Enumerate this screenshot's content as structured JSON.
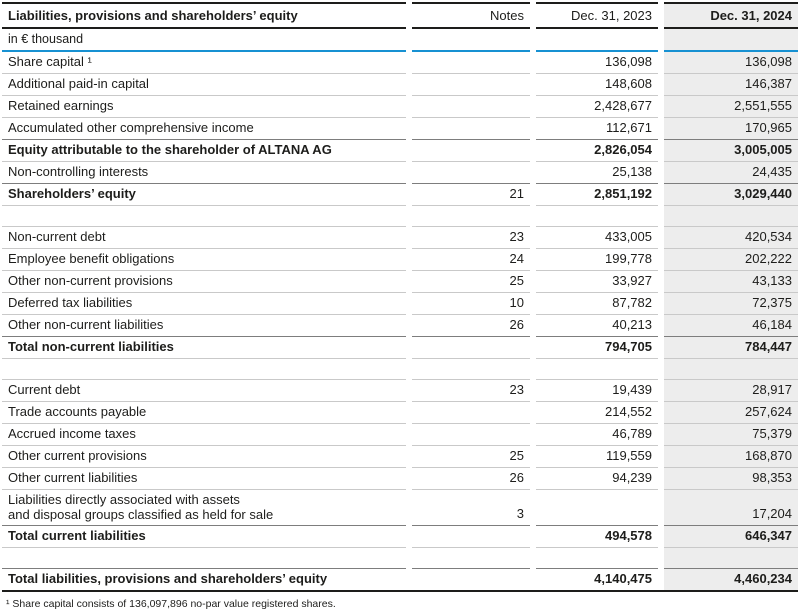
{
  "table": {
    "header": {
      "label": "Liabilities, provisions and shareholders’ equity",
      "notes": "Notes",
      "y2023": "Dec. 31, 2023",
      "y2024": "Dec. 31, 2024"
    },
    "unit_label": "in € thousand",
    "rows": [
      {
        "label": "Share capital ¹",
        "notes": "",
        "v2023": "136,098",
        "v2024": "136,098",
        "bold": false,
        "sep": "blue",
        "spacer": false,
        "twoline": false
      },
      {
        "label": "Additional paid-in capital",
        "notes": "",
        "v2023": "148,608",
        "v2024": "146,387",
        "bold": false,
        "sep": "light",
        "spacer": false,
        "twoline": false
      },
      {
        "label": "Retained earnings",
        "notes": "",
        "v2023": "2,428,677",
        "v2024": "2,551,555",
        "bold": false,
        "sep": "light",
        "spacer": false,
        "twoline": false
      },
      {
        "label": "Accumulated other comprehensive income",
        "notes": "",
        "v2023": "112,671",
        "v2024": "170,965",
        "bold": false,
        "sep": "light",
        "spacer": false,
        "twoline": false
      },
      {
        "label": "Equity attributable to the shareholder of ALTANA AG",
        "notes": "",
        "v2023": "2,826,054",
        "v2024": "3,005,005",
        "bold": true,
        "sep": "dark",
        "spacer": false,
        "twoline": false
      },
      {
        "label": "Non-controlling interests",
        "notes": "",
        "v2023": "25,138",
        "v2024": "24,435",
        "bold": false,
        "sep": "light",
        "spacer": false,
        "twoline": false
      },
      {
        "label": "Shareholders’ equity",
        "notes": "21",
        "v2023": "2,851,192",
        "v2024": "3,029,440",
        "bold": true,
        "sep": "dark",
        "spacer": false,
        "twoline": false
      },
      {
        "label": "",
        "notes": "",
        "v2023": "",
        "v2024": "",
        "bold": false,
        "sep": "light",
        "spacer": true,
        "twoline": false
      },
      {
        "label": "Non-current debt",
        "notes": "23",
        "v2023": "433,005",
        "v2024": "420,534",
        "bold": false,
        "sep": "light",
        "spacer": false,
        "twoline": false
      },
      {
        "label": "Employee benefit obligations",
        "notes": "24",
        "v2023": "199,778",
        "v2024": "202,222",
        "bold": false,
        "sep": "light",
        "spacer": false,
        "twoline": false
      },
      {
        "label": "Other non-current provisions",
        "notes": "25",
        "v2023": "33,927",
        "v2024": "43,133",
        "bold": false,
        "sep": "light",
        "spacer": false,
        "twoline": false
      },
      {
        "label": "Deferred tax liabilities",
        "notes": "10",
        "v2023": "87,782",
        "v2024": "72,375",
        "bold": false,
        "sep": "light",
        "spacer": false,
        "twoline": false
      },
      {
        "label": "Other non-current liabilities",
        "notes": "26",
        "v2023": "40,213",
        "v2024": "46,184",
        "bold": false,
        "sep": "light",
        "spacer": false,
        "twoline": false
      },
      {
        "label": "Total non-current liabilities",
        "notes": "",
        "v2023": "794,705",
        "v2024": "784,447",
        "bold": true,
        "sep": "dark",
        "spacer": false,
        "twoline": false
      },
      {
        "label": "",
        "notes": "",
        "v2023": "",
        "v2024": "",
        "bold": false,
        "sep": "light",
        "spacer": true,
        "twoline": false
      },
      {
        "label": "Current debt",
        "notes": "23",
        "v2023": "19,439",
        "v2024": "28,917",
        "bold": false,
        "sep": "light",
        "spacer": false,
        "twoline": false
      },
      {
        "label": "Trade accounts payable",
        "notes": "",
        "v2023": "214,552",
        "v2024": "257,624",
        "bold": false,
        "sep": "light",
        "spacer": false,
        "twoline": false
      },
      {
        "label": "Accrued income taxes",
        "notes": "",
        "v2023": "46,789",
        "v2024": "75,379",
        "bold": false,
        "sep": "light",
        "spacer": false,
        "twoline": false
      },
      {
        "label": "Other current provisions",
        "notes": "25",
        "v2023": "119,559",
        "v2024": "168,870",
        "bold": false,
        "sep": "light",
        "spacer": false,
        "twoline": false
      },
      {
        "label": "Other current liabilities",
        "notes": "26",
        "v2023": "94,239",
        "v2024": "98,353",
        "bold": false,
        "sep": "light",
        "spacer": false,
        "twoline": false
      },
      {
        "label": "Liabilities directly associated with assets\nand disposal groups classified as held for sale",
        "notes": "3",
        "v2023": "",
        "v2024": "17,204",
        "bold": false,
        "sep": "light",
        "spacer": false,
        "twoline": true
      },
      {
        "label": "Total current liabilities",
        "notes": "",
        "v2023": "494,578",
        "v2024": "646,347",
        "bold": true,
        "sep": "dark",
        "spacer": false,
        "twoline": false
      },
      {
        "label": "",
        "notes": "",
        "v2023": "",
        "v2024": "",
        "bold": false,
        "sep": "light",
        "spacer": true,
        "twoline": false
      },
      {
        "label": "Total liabilities, provisions and shareholders’ equity",
        "notes": "",
        "v2023": "4,140,475",
        "v2024": "4,460,234",
        "bold": true,
        "sep": "dark",
        "spacer": false,
        "twoline": false
      }
    ]
  },
  "footnote": "¹ Share capital consists of 136,097,896 no-par value registered shares.",
  "colors": {
    "accent_blue_rule": "#1791d2",
    "highlight_column_bg": "#ededed",
    "separator_light": "#c9c9c9",
    "separator_dark": "#7d7d7d",
    "border_black": "#1d1d1b",
    "text": "#1d1d1b"
  }
}
